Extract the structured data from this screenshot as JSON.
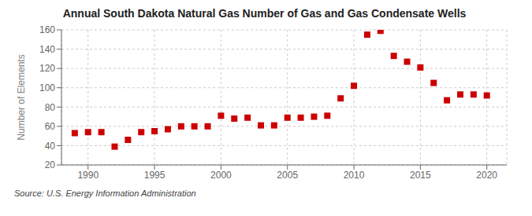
{
  "chart_data": {
    "type": "scatter",
    "title": "Annual South Dakota Natural Gas Number of Gas and Gas Condensate Wells",
    "ylabel": "Number of Elements",
    "source": "Source: U.S. Energy Information Administration",
    "x": [
      1989,
      1990,
      1991,
      1992,
      1993,
      1994,
      1995,
      1996,
      1997,
      1998,
      1999,
      2000,
      2001,
      2002,
      2003,
      2004,
      2005,
      2006,
      2007,
      2008,
      2009,
      2010,
      2011,
      2012,
      2013,
      2014,
      2015,
      2016,
      2017,
      2018,
      2019,
      2020
    ],
    "values": [
      53,
      54,
      54,
      39,
      46,
      54,
      55,
      57,
      60,
      60,
      60,
      71,
      68,
      69,
      61,
      61,
      69,
      69,
      70,
      71,
      89,
      102,
      155,
      159,
      133,
      127,
      121,
      105,
      87,
      93,
      93,
      92
    ],
    "color": "#cc0000",
    "marker": "square",
    "xlim": [
      1988.0,
      2021.5
    ],
    "ylim": [
      20,
      160
    ],
    "xticks": [
      1990,
      1995,
      2000,
      2005,
      2010,
      2015,
      2020
    ],
    "yticks": [
      20,
      40,
      60,
      80,
      100,
      120,
      140,
      160
    ],
    "grid": true
  }
}
